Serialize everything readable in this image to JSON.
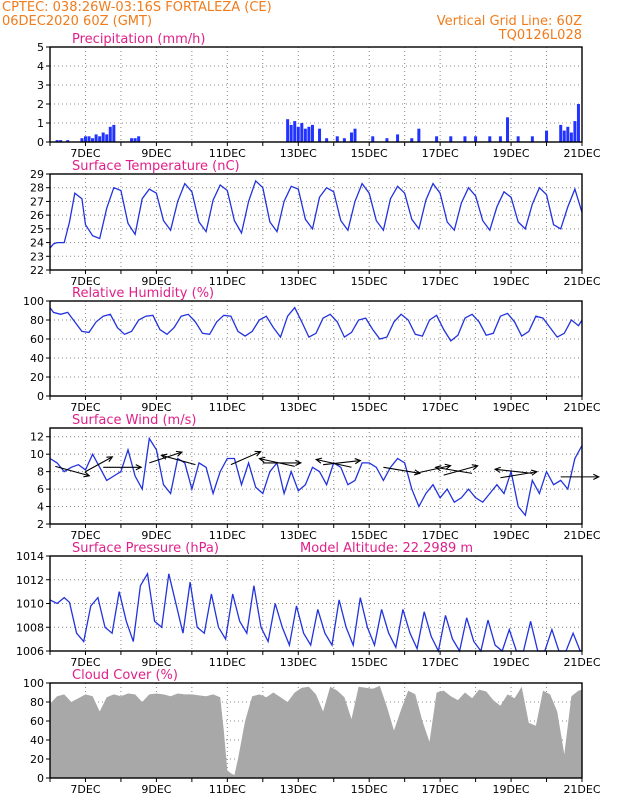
{
  "header": {
    "line1": "CPTEC:   038:26W-03:16S   FORTALEZA (CE)",
    "line2": "06DEC2020 60Z (GMT)",
    "grid_note": "Vertical Grid Line: 60Z",
    "code": "TQ0126L028"
  },
  "colors": {
    "header": "#f07c1c",
    "title": "#e0208a",
    "line": "#2233dd",
    "bar": "#2233ff",
    "cloud": "#a8a8a8",
    "arrow": "#000000",
    "grid": "#888888"
  },
  "chart_data": [
    {
      "type": "bar",
      "title": "Precipitation (mm/h)",
      "ylim": [
        0,
        5
      ],
      "yticks": [
        0,
        1,
        2,
        3,
        4,
        5
      ],
      "xlim": [
        6,
        21
      ],
      "xticks": [
        "7DEC",
        "9DEC",
        "11DEC",
        "13DEC",
        "15DEC",
        "17DEC",
        "19DEC",
        "21DEC"
      ],
      "x": [
        6.2,
        6.3,
        6.5,
        6.9,
        7.0,
        7.1,
        7.2,
        7.3,
        7.4,
        7.5,
        7.6,
        7.7,
        7.8,
        8.3,
        8.4,
        8.5,
        12.7,
        12.8,
        12.9,
        13.0,
        13.1,
        13.2,
        13.3,
        13.4,
        13.6,
        13.8,
        14.1,
        14.3,
        14.5,
        14.6,
        15.1,
        15.5,
        15.8,
        16.2,
        16.4,
        16.9,
        17.3,
        17.7,
        18.0,
        18.4,
        18.7,
        18.9,
        19.2,
        19.6,
        20.0,
        20.4,
        20.5,
        20.6,
        20.7,
        20.8,
        20.9
      ],
      "values": [
        0.1,
        0.1,
        0.1,
        0.2,
        0.3,
        0.3,
        0.2,
        0.4,
        0.3,
        0.5,
        0.4,
        0.8,
        0.9,
        0.2,
        0.2,
        0.3,
        1.2,
        0.9,
        1.1,
        0.8,
        1.0,
        0.7,
        0.8,
        0.9,
        0.7,
        0.2,
        0.3,
        0.2,
        0.5,
        0.7,
        0.3,
        0.2,
        0.4,
        0.2,
        0.7,
        0.3,
        0.3,
        0.3,
        0.3,
        0.3,
        0.3,
        1.3,
        0.3,
        0.3,
        0.6,
        0.9,
        0.6,
        0.8,
        0.5,
        1.1,
        2.0
      ]
    },
    {
      "type": "line",
      "title": "Surface Temperature (nC)",
      "ylim": [
        22,
        29
      ],
      "yticks": [
        22,
        23,
        24,
        25,
        26,
        27,
        28,
        29
      ],
      "xlim": [
        6,
        21
      ],
      "xticks": [
        "7DEC",
        "9DEC",
        "11DEC",
        "13DEC",
        "15DEC",
        "17DEC",
        "19DEC",
        "21DEC"
      ],
      "x": [
        6.0,
        6.1,
        6.2,
        6.4,
        6.55,
        6.7,
        6.9,
        7.0,
        7.2,
        7.4,
        7.6,
        7.8,
        8.0,
        8.2,
        8.4,
        8.6,
        8.8,
        9.0,
        9.2,
        9.4,
        9.6,
        9.8,
        10.0,
        10.2,
        10.4,
        10.6,
        10.8,
        11.0,
        11.2,
        11.4,
        11.6,
        11.8,
        12.0,
        12.2,
        12.4,
        12.6,
        12.8,
        13.0,
        13.2,
        13.4,
        13.6,
        13.8,
        14.0,
        14.2,
        14.4,
        14.6,
        14.8,
        15.0,
        15.2,
        15.4,
        15.6,
        15.8,
        16.0,
        16.2,
        16.4,
        16.6,
        16.8,
        17.0,
        17.2,
        17.4,
        17.6,
        17.8,
        18.0,
        18.2,
        18.4,
        18.6,
        18.8,
        19.0,
        19.2,
        19.4,
        19.6,
        19.8,
        20.0,
        20.2,
        20.4,
        20.6,
        20.8,
        21.0
      ],
      "values": [
        23.6,
        23.9,
        24.0,
        24.0,
        25.5,
        27.6,
        27.2,
        25.3,
        24.5,
        24.3,
        26.5,
        28.0,
        27.8,
        25.4,
        24.6,
        27.2,
        27.9,
        27.6,
        25.6,
        24.9,
        27.0,
        28.3,
        27.7,
        25.5,
        24.8,
        27.1,
        28.2,
        27.8,
        25.6,
        24.7,
        27.0,
        28.5,
        28.0,
        25.5,
        24.8,
        27.0,
        28.1,
        27.9,
        25.7,
        25.0,
        27.3,
        28.0,
        27.7,
        25.6,
        24.9,
        27.0,
        28.3,
        27.6,
        25.6,
        24.9,
        27.2,
        28.1,
        27.6,
        25.7,
        25.0,
        27.1,
        28.3,
        27.6,
        25.5,
        24.9,
        26.9,
        28.0,
        27.4,
        25.6,
        24.9,
        26.6,
        27.7,
        27.3,
        25.5,
        25.0,
        26.8,
        28.0,
        27.5,
        25.3,
        25.0,
        26.6,
        27.9,
        26.2
      ]
    },
    {
      "type": "line",
      "title": "Relative Humidity (%)",
      "ylim": [
        0,
        100
      ],
      "yticks": [
        0,
        20,
        40,
        60,
        80,
        100
      ],
      "xlim": [
        6,
        21
      ],
      "xticks": [
        "7DEC",
        "9DEC",
        "11DEC",
        "13DEC",
        "15DEC",
        "17DEC",
        "19DEC",
        "21DEC"
      ],
      "x": [
        6.0,
        6.1,
        6.3,
        6.5,
        6.7,
        6.9,
        7.1,
        7.3,
        7.5,
        7.7,
        7.9,
        8.1,
        8.3,
        8.5,
        8.7,
        8.9,
        9.1,
        9.3,
        9.5,
        9.7,
        9.9,
        10.1,
        10.3,
        10.5,
        10.7,
        10.9,
        11.1,
        11.3,
        11.5,
        11.7,
        11.9,
        12.1,
        12.3,
        12.5,
        12.7,
        12.9,
        13.1,
        13.3,
        13.5,
        13.7,
        13.9,
        14.1,
        14.3,
        14.5,
        14.7,
        14.9,
        15.1,
        15.3,
        15.5,
        15.7,
        15.9,
        16.1,
        16.3,
        16.5,
        16.7,
        16.9,
        17.1,
        17.3,
        17.5,
        17.7,
        17.9,
        18.1,
        18.3,
        18.5,
        18.7,
        18.9,
        19.1,
        19.3,
        19.5,
        19.7,
        19.9,
        20.1,
        20.3,
        20.5,
        20.7,
        20.9,
        21.0
      ],
      "values": [
        93,
        88,
        86,
        88,
        78,
        68,
        67,
        78,
        84,
        86,
        72,
        65,
        68,
        80,
        84,
        85,
        70,
        65,
        72,
        84,
        86,
        78,
        66,
        65,
        78,
        85,
        84,
        68,
        63,
        68,
        80,
        84,
        72,
        62,
        84,
        93,
        78,
        62,
        66,
        82,
        86,
        78,
        62,
        67,
        80,
        82,
        70,
        60,
        62,
        78,
        86,
        80,
        65,
        63,
        80,
        85,
        70,
        58,
        64,
        82,
        86,
        78,
        64,
        66,
        84,
        87,
        78,
        63,
        68,
        84,
        82,
        72,
        62,
        66,
        80,
        74,
        80
      ]
    },
    {
      "type": "line",
      "title": "Surface Wind (m/s)",
      "ylim": [
        2,
        13
      ],
      "yticks": [
        2,
        4,
        6,
        8,
        10,
        12
      ],
      "xlim": [
        6,
        21
      ],
      "xticks": [
        "7DEC",
        "9DEC",
        "11DEC",
        "13DEC",
        "15DEC",
        "17DEC",
        "19DEC",
        "21DEC"
      ],
      "x": [
        6.0,
        6.2,
        6.4,
        6.6,
        6.8,
        7.0,
        7.2,
        7.4,
        7.6,
        7.8,
        8.0,
        8.2,
        8.4,
        8.6,
        8.8,
        9.0,
        9.2,
        9.4,
        9.6,
        9.8,
        10.0,
        10.2,
        10.4,
        10.6,
        10.8,
        11.0,
        11.2,
        11.4,
        11.6,
        11.8,
        12.0,
        12.2,
        12.4,
        12.6,
        12.8,
        13.0,
        13.2,
        13.4,
        13.6,
        13.8,
        14.0,
        14.2,
        14.4,
        14.6,
        14.8,
        15.0,
        15.2,
        15.4,
        15.6,
        15.8,
        16.0,
        16.2,
        16.4,
        16.6,
        16.8,
        17.0,
        17.2,
        17.4,
        17.6,
        17.8,
        18.0,
        18.2,
        18.4,
        18.6,
        18.8,
        19.0,
        19.2,
        19.4,
        19.6,
        19.8,
        20.0,
        20.2,
        20.4,
        20.6,
        20.8,
        21.0
      ],
      "values": [
        9.5,
        9.0,
        8.0,
        8.5,
        8.8,
        8.2,
        10.0,
        8.5,
        7.0,
        7.5,
        8.0,
        10.5,
        7.5,
        6.0,
        11.8,
        10.5,
        6.5,
        5.5,
        9.5,
        9.0,
        6.0,
        9.0,
        8.5,
        5.5,
        8.0,
        9.5,
        9.5,
        6.5,
        9.0,
        6.2,
        5.5,
        8.0,
        9.0,
        5.5,
        8.0,
        5.8,
        6.5,
        8.5,
        8.0,
        6.5,
        9.0,
        8.5,
        6.5,
        7.0,
        9.0,
        9.0,
        8.5,
        7.0,
        8.5,
        9.5,
        9.0,
        6.0,
        4.0,
        5.5,
        6.5,
        5.0,
        6.0,
        4.5,
        5.0,
        6.0,
        5.0,
        4.5,
        5.5,
        6.5,
        5.5,
        8.0,
        4.0,
        3.0,
        7.0,
        5.5,
        8.0,
        6.5,
        7.0,
        6.0,
        9.5,
        11.0
      ],
      "wind_barbs": [
        {
          "x": 6.15,
          "y": 8.6,
          "u": 1.0,
          "v": -0.5
        },
        {
          "x": 7.0,
          "y": 8.0,
          "u": 1.0,
          "v": 1.0
        },
        {
          "x": 7.5,
          "y": 8.5,
          "u": 1.0,
          "v": 0.0
        },
        {
          "x": 8.8,
          "y": 9.0,
          "u": 1.0,
          "v": 0.6
        },
        {
          "x": 10.1,
          "y": 8.8,
          "u": -1.0,
          "v": 0.5
        },
        {
          "x": 11.1,
          "y": 8.8,
          "u": 1.0,
          "v": 0.8
        },
        {
          "x": 12.0,
          "y": 9.0,
          "u": 1.0,
          "v": 0.0
        },
        {
          "x": 12.9,
          "y": 8.6,
          "u": -1.0,
          "v": 0.4
        },
        {
          "x": 13.7,
          "y": 8.8,
          "u": 1.0,
          "v": 0.2
        },
        {
          "x": 14.5,
          "y": 8.5,
          "u": -1.0,
          "v": 0.4
        },
        {
          "x": 15.4,
          "y": 8.5,
          "u": 1.0,
          "v": -0.3
        },
        {
          "x": 16.3,
          "y": 7.8,
          "u": 1.0,
          "v": 0.4
        },
        {
          "x": 17.1,
          "y": 7.6,
          "u": 1.0,
          "v": 0.5
        },
        {
          "x": 17.9,
          "y": 7.8,
          "u": -1.0,
          "v": 0.3
        },
        {
          "x": 18.7,
          "y": 7.3,
          "u": 1.0,
          "v": 0.3
        },
        {
          "x": 19.6,
          "y": 7.8,
          "u": -1.0,
          "v": 0.2
        },
        {
          "x": 20.4,
          "y": 7.4,
          "u": 1.0,
          "v": 0.0
        }
      ]
    },
    {
      "type": "line",
      "title": "Surface Pressure (hPa)",
      "annotation": "Model Altitude: 22.2989 m",
      "ylim": [
        1006,
        1014
      ],
      "yticks": [
        1006,
        1008,
        1010,
        1012,
        1014
      ],
      "xlim": [
        6,
        21
      ],
      "xticks": [
        "7DEC",
        "9DEC",
        "11DEC",
        "13DEC",
        "15DEC",
        "17DEC",
        "19DEC",
        "21DEC"
      ],
      "x": [
        6.0,
        6.2,
        6.4,
        6.55,
        6.75,
        6.95,
        7.15,
        7.35,
        7.55,
        7.75,
        7.95,
        8.15,
        8.35,
        8.55,
        8.75,
        8.95,
        9.15,
        9.35,
        9.55,
        9.75,
        9.95,
        10.15,
        10.35,
        10.55,
        10.75,
        10.95,
        11.15,
        11.35,
        11.55,
        11.75,
        11.95,
        12.15,
        12.35,
        12.55,
        12.75,
        12.95,
        13.15,
        13.35,
        13.55,
        13.75,
        13.95,
        14.15,
        14.35,
        14.55,
        14.75,
        14.95,
        15.15,
        15.35,
        15.55,
        15.75,
        15.95,
        16.15,
        16.35,
        16.55,
        16.75,
        16.95,
        17.15,
        17.35,
        17.55,
        17.75,
        17.95,
        18.15,
        18.35,
        18.55,
        18.75,
        18.95,
        19.15,
        19.35,
        19.55,
        19.75,
        19.95,
        20.15,
        20.35,
        20.55,
        20.75,
        20.95,
        21.0
      ],
      "values": [
        1010.3,
        1010.0,
        1010.5,
        1010.1,
        1007.5,
        1006.8,
        1009.8,
        1010.5,
        1008.0,
        1007.5,
        1011.0,
        1008.5,
        1006.8,
        1011.5,
        1012.5,
        1008.5,
        1008.0,
        1012.5,
        1010.0,
        1007.5,
        1011.8,
        1008.0,
        1007.5,
        1010.8,
        1008.0,
        1007.0,
        1010.8,
        1008.5,
        1007.5,
        1011.5,
        1008.0,
        1006.8,
        1010.0,
        1008.0,
        1006.5,
        1009.8,
        1007.5,
        1006.5,
        1009.5,
        1007.5,
        1006.5,
        1010.3,
        1008.0,
        1006.5,
        1010.5,
        1008.0,
        1006.5,
        1009.5,
        1007.5,
        1006.3,
        1009.5,
        1007.5,
        1006.2,
        1009.3,
        1007.2,
        1006.0,
        1009.0,
        1007.0,
        1006.0,
        1008.8,
        1006.8,
        1006.0,
        1008.6,
        1006.5,
        1006.0,
        1007.8,
        1006.0,
        1006.0,
        1008.5,
        1006.0,
        1006.0,
        1007.8,
        1006.0,
        1006.0,
        1007.5,
        1006.0,
        1006.0
      ]
    },
    {
      "type": "area",
      "title": "Cloud Cover (%)",
      "ylim": [
        0,
        100
      ],
      "yticks": [
        0,
        20,
        40,
        60,
        80,
        100
      ],
      "xlim": [
        6,
        21
      ],
      "xticks": [
        "7DEC",
        "9DEC",
        "11DEC",
        "13DEC",
        "15DEC",
        "17DEC",
        "19DEC",
        "21DEC"
      ],
      "x": [
        6.0,
        6.2,
        6.4,
        6.6,
        6.8,
        7.0,
        7.2,
        7.4,
        7.6,
        7.8,
        8.0,
        8.2,
        8.4,
        8.6,
        8.8,
        9.0,
        9.2,
        9.4,
        9.6,
        9.8,
        10.0,
        10.2,
        10.4,
        10.6,
        10.8,
        10.9,
        11.0,
        11.1,
        11.2,
        11.3,
        11.5,
        11.7,
        11.9,
        12.1,
        12.3,
        12.5,
        12.7,
        12.9,
        13.1,
        13.3,
        13.5,
        13.7,
        13.9,
        14.1,
        14.3,
        14.5,
        14.7,
        14.9,
        15.1,
        15.3,
        15.5,
        15.7,
        15.9,
        16.1,
        16.3,
        16.5,
        16.7,
        16.9,
        17.1,
        17.3,
        17.5,
        17.7,
        17.9,
        18.1,
        18.3,
        18.5,
        18.7,
        18.9,
        19.1,
        19.3,
        19.5,
        19.7,
        19.9,
        20.1,
        20.3,
        20.5,
        20.7,
        20.9,
        21.0
      ],
      "values": [
        78,
        86,
        88,
        80,
        84,
        88,
        86,
        70,
        85,
        88,
        86,
        89,
        88,
        80,
        88,
        89,
        88,
        86,
        89,
        88,
        88,
        87,
        86,
        88,
        85,
        50,
        8,
        5,
        3,
        20,
        60,
        86,
        88,
        85,
        90,
        85,
        80,
        90,
        95,
        96,
        88,
        70,
        96,
        92,
        85,
        62,
        96,
        95,
        94,
        97,
        75,
        50,
        72,
        92,
        88,
        60,
        38,
        90,
        92,
        86,
        82,
        90,
        84,
        93,
        91,
        82,
        76,
        88,
        84,
        96,
        58,
        55,
        92,
        88,
        70,
        25,
        86,
        92,
        93
      ]
    }
  ]
}
